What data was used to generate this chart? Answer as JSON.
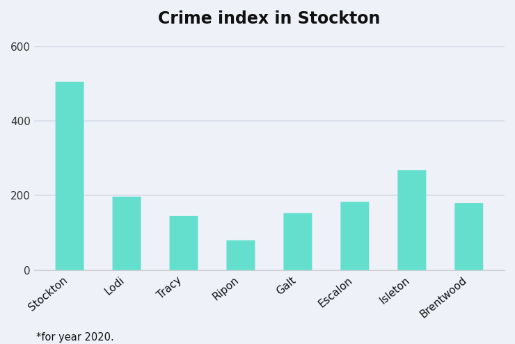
{
  "categories": [
    "Stockton",
    "Lodi",
    "Tracy",
    "Ripon",
    "Galt",
    "Escalon",
    "Isleton",
    "Brentwood"
  ],
  "values": [
    505,
    197,
    145,
    80,
    153,
    183,
    268,
    180
  ],
  "bar_color": "#64DFCE",
  "title": "Crime index in Stockton",
  "title_fontsize": 17,
  "title_fontweight": "bold",
  "ylim": [
    0,
    630
  ],
  "yticks": [
    0,
    200,
    400,
    600
  ],
  "background_color": "#EEF1F8",
  "footnote": "*for year 2020.",
  "footnote_fontsize": 10.5,
  "tick_label_fontsize": 11,
  "bar_width": 0.5,
  "grid_color": "#d8dce8",
  "grid_linewidth": 1.2,
  "bar_gap": 0.35
}
